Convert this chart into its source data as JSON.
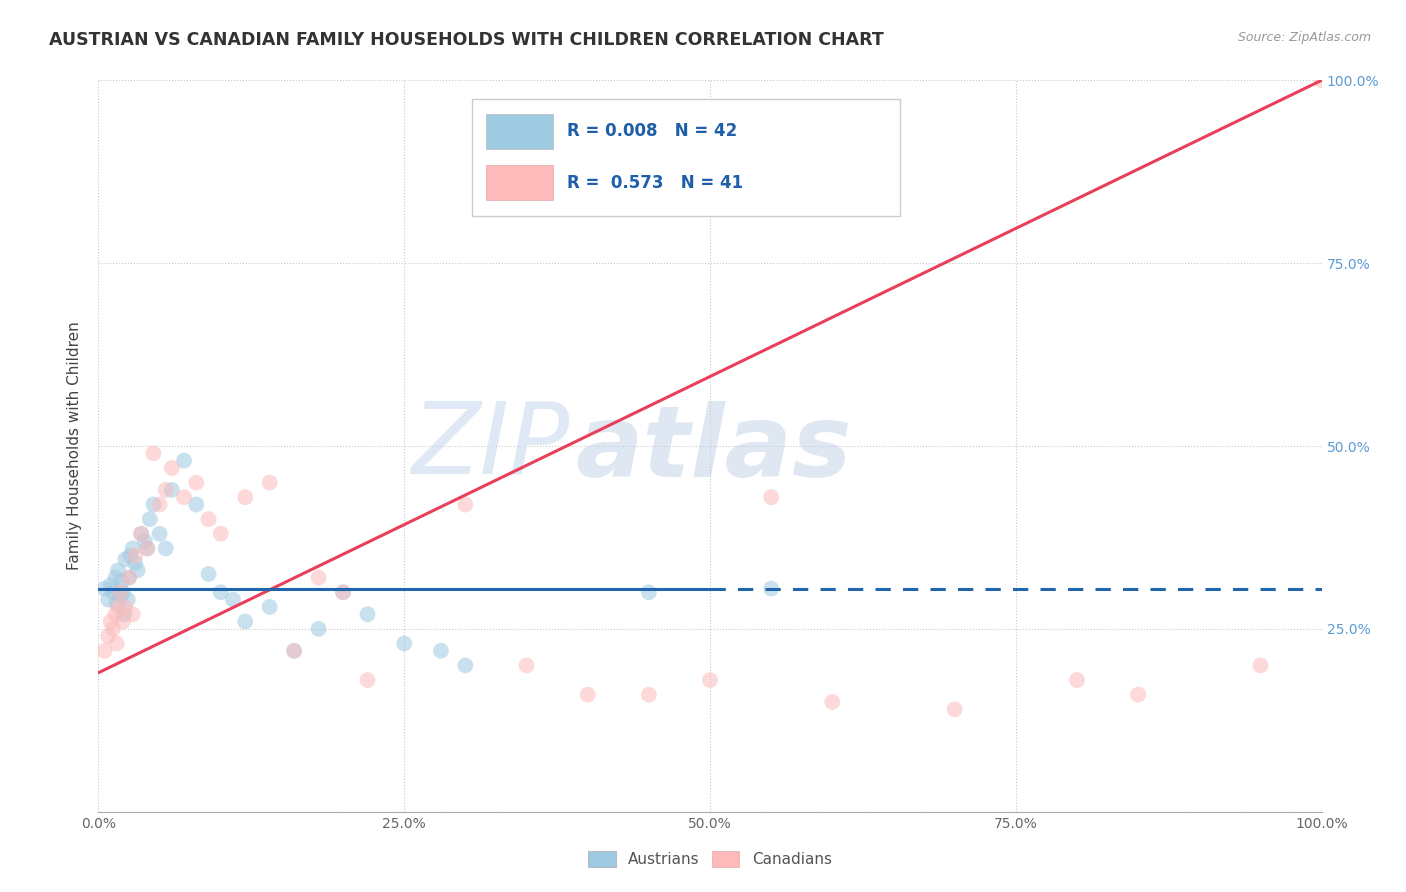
{
  "title": "AUSTRIAN VS CANADIAN FAMILY HOUSEHOLDS WITH CHILDREN CORRELATION CHART",
  "source": "Source: ZipAtlas.com",
  "ylabel": "Family Households with Children",
  "background_color": "#ffffff",
  "grid_color": "#c8c8c8",
  "watermark_zip": "ZIP",
  "watermark_atlas": "atlas",
  "austrians_x": [
    0.5,
    0.8,
    1.0,
    1.2,
    1.4,
    1.5,
    1.6,
    1.8,
    1.9,
    2.0,
    2.1,
    2.2,
    2.4,
    2.5,
    2.6,
    2.8,
    3.0,
    3.2,
    3.5,
    3.8,
    4.0,
    4.2,
    4.5,
    5.0,
    5.5,
    6.0,
    7.0,
    8.0,
    9.0,
    10.0,
    11.0,
    12.0,
    14.0,
    16.0,
    18.0,
    20.0,
    22.0,
    25.0,
    28.0,
    30.0,
    45.0,
    55.0
  ],
  "austrians_y": [
    30.5,
    29.0,
    31.0,
    30.0,
    32.0,
    28.5,
    33.0,
    29.5,
    31.5,
    30.0,
    27.0,
    34.5,
    29.0,
    32.0,
    35.0,
    36.0,
    34.0,
    33.0,
    38.0,
    37.0,
    36.0,
    40.0,
    42.0,
    38.0,
    36.0,
    44.0,
    48.0,
    42.0,
    32.5,
    30.0,
    29.0,
    26.0,
    28.0,
    22.0,
    25.0,
    30.0,
    27.0,
    23.0,
    22.0,
    20.0,
    30.0,
    30.5
  ],
  "canadians_x": [
    0.5,
    0.8,
    1.0,
    1.2,
    1.4,
    1.5,
    1.6,
    1.8,
    2.0,
    2.2,
    2.5,
    2.8,
    3.0,
    3.5,
    4.0,
    4.5,
    5.0,
    5.5,
    6.0,
    7.0,
    8.0,
    9.0,
    10.0,
    12.0,
    14.0,
    16.0,
    18.0,
    20.0,
    22.0,
    30.0,
    35.0,
    40.0,
    45.0,
    50.0,
    55.0,
    60.0,
    70.0,
    80.0,
    85.0,
    95.0,
    100.0
  ],
  "canadians_y": [
    22.0,
    24.0,
    26.0,
    25.0,
    27.0,
    23.0,
    28.0,
    30.0,
    26.0,
    28.0,
    32.0,
    27.0,
    35.0,
    38.0,
    36.0,
    49.0,
    42.0,
    44.0,
    47.0,
    43.0,
    45.0,
    40.0,
    38.0,
    43.0,
    45.0,
    22.0,
    32.0,
    30.0,
    18.0,
    42.0,
    20.0,
    16.0,
    16.0,
    18.0,
    43.0,
    15.0,
    14.0,
    18.0,
    16.0,
    20.0,
    100.0
  ],
  "austrian_color": "#9ecae1",
  "canadian_color": "#fcbaba",
  "austrian_edge_color": "#6baed6",
  "canadian_edge_color": "#fb9a99",
  "austrian_line_color": "#2166ac",
  "canadian_line_color": "#e8405a",
  "austrian_line_y0": 30.5,
  "austrian_line_y1": 30.5,
  "canadian_line_y0": 19.0,
  "canadian_line_y1": 100.0,
  "R_austrian": 0.008,
  "N_austrian": 42,
  "R_canadian": 0.573,
  "N_canadian": 41,
  "xlim": [
    0,
    100
  ],
  "ylim": [
    0,
    100
  ],
  "xtick_positions": [
    0,
    25,
    50,
    75,
    100
  ],
  "xtick_labels": [
    "0.0%",
    "25.0%",
    "50.0%",
    "75.0%",
    "100.0%"
  ],
  "ytick_positions": [
    0,
    25,
    50,
    75,
    100
  ],
  "right_ytick_labels": [
    "25.0%",
    "50.0%",
    "75.0%",
    "100.0%"
  ],
  "right_ytick_positions": [
    25,
    50,
    75,
    100
  ],
  "marker_size": 130,
  "alpha": 0.55,
  "linewidth": 2.2,
  "solid_end_x": 50
}
